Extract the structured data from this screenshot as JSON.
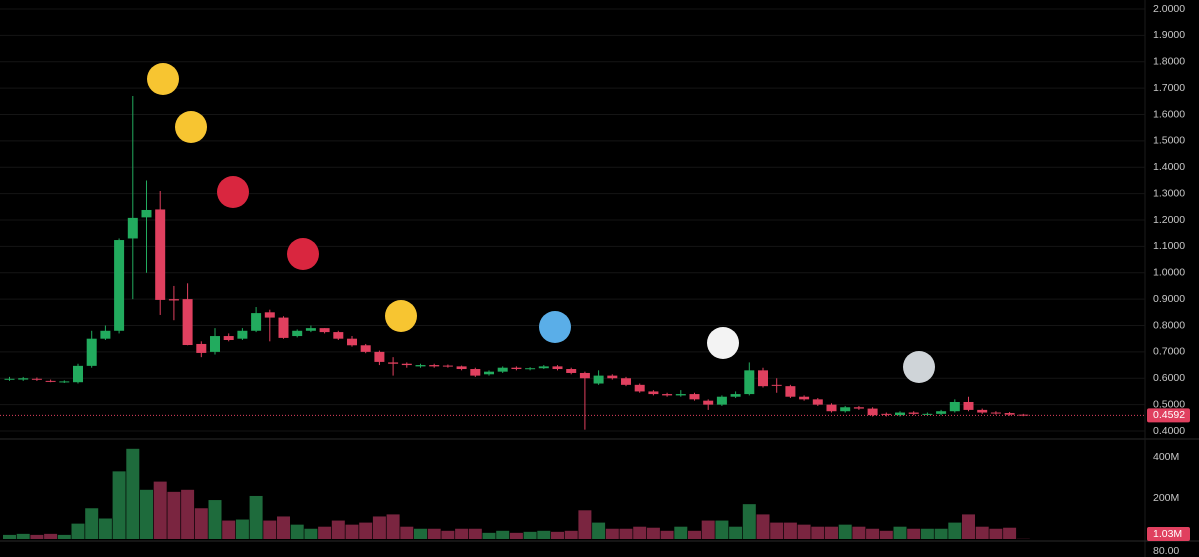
{
  "chart_data": {
    "type": "candlestick",
    "colors": {
      "up": "#22ab5e",
      "down": "#e0405f",
      "volume_up": "#1e6b3c",
      "volume_down": "#7a2540"
    },
    "open": [
      0.595,
      0.595,
      0.598,
      0.59,
      0.585,
      0.585,
      0.647,
      0.75,
      0.78,
      1.13,
      1.21,
      1.24,
      0.9,
      0.9,
      0.73,
      0.7,
      0.76,
      0.75,
      0.78,
      0.85,
      0.83,
      0.76,
      0.78,
      0.79,
      0.775,
      0.75,
      0.725,
      0.7,
      0.66,
      0.655,
      0.645,
      0.65,
      0.648,
      0.645,
      0.635,
      0.615,
      0.625,
      0.64,
      0.635,
      0.638,
      0.645,
      0.635,
      0.62,
      0.58,
      0.61,
      0.6,
      0.575,
      0.55,
      0.54,
      0.535,
      0.54,
      0.515,
      0.5,
      0.53,
      0.54,
      0.63,
      0.575,
      0.57,
      0.53,
      0.52,
      0.5,
      0.475,
      0.49,
      0.485,
      0.465,
      0.46,
      0.47,
      0.463,
      0.465,
      0.475,
      0.51,
      0.48,
      0.47,
      0.468,
      0.462
    ],
    "high": [
      0.605,
      0.605,
      0.603,
      0.595,
      0.592,
      0.655,
      0.78,
      0.8,
      1.13,
      1.67,
      1.35,
      1.31,
      0.95,
      0.96,
      0.74,
      0.79,
      0.77,
      0.79,
      0.87,
      0.86,
      0.835,
      0.785,
      0.8,
      0.79,
      0.78,
      0.76,
      0.73,
      0.705,
      0.68,
      0.66,
      0.655,
      0.655,
      0.652,
      0.648,
      0.64,
      0.63,
      0.645,
      0.645,
      0.642,
      0.65,
      0.65,
      0.64,
      0.625,
      0.63,
      0.615,
      0.605,
      0.58,
      0.555,
      0.545,
      0.555,
      0.545,
      0.52,
      0.535,
      0.55,
      0.66,
      0.64,
      0.6,
      0.575,
      0.535,
      0.525,
      0.505,
      0.495,
      0.495,
      0.49,
      0.47,
      0.475,
      0.475,
      0.47,
      0.48,
      0.52,
      0.53,
      0.485,
      0.475,
      0.472,
      0.465
    ],
    "low": [
      0.59,
      0.59,
      0.59,
      0.585,
      0.582,
      0.58,
      0.64,
      0.745,
      0.77,
      0.9,
      1.0,
      0.84,
      0.82,
      0.725,
      0.68,
      0.69,
      0.74,
      0.745,
      0.775,
      0.74,
      0.75,
      0.755,
      0.775,
      0.77,
      0.745,
      0.72,
      0.695,
      0.65,
      0.61,
      0.64,
      0.64,
      0.64,
      0.64,
      0.63,
      0.605,
      0.61,
      0.62,
      0.63,
      0.63,
      0.635,
      0.63,
      0.615,
      0.405,
      0.575,
      0.595,
      0.57,
      0.545,
      0.535,
      0.53,
      0.53,
      0.515,
      0.48,
      0.495,
      0.525,
      0.535,
      0.565,
      0.545,
      0.525,
      0.515,
      0.495,
      0.47,
      0.47,
      0.48,
      0.455,
      0.455,
      0.455,
      0.46,
      0.458,
      0.46,
      0.47,
      0.475,
      0.465,
      0.462,
      0.458,
      0.456
    ],
    "close": [
      0.598,
      0.6,
      0.595,
      0.588,
      0.588,
      0.647,
      0.75,
      0.78,
      1.124,
      1.208,
      1.238,
      0.897,
      0.895,
      0.726,
      0.696,
      0.76,
      0.745,
      0.78,
      0.847,
      0.83,
      0.753,
      0.78,
      0.79,
      0.775,
      0.75,
      0.725,
      0.7,
      0.662,
      0.655,
      0.65,
      0.65,
      0.645,
      0.645,
      0.635,
      0.61,
      0.625,
      0.64,
      0.635,
      0.638,
      0.645,
      0.635,
      0.62,
      0.6,
      0.61,
      0.6,
      0.575,
      0.55,
      0.54,
      0.535,
      0.54,
      0.52,
      0.5,
      0.53,
      0.54,
      0.63,
      0.57,
      0.572,
      0.53,
      0.52,
      0.5,
      0.475,
      0.49,
      0.485,
      0.46,
      0.462,
      0.47,
      0.465,
      0.465,
      0.475,
      0.51,
      0.48,
      0.47,
      0.468,
      0.462,
      0.4592
    ],
    "ylim": [
      0.4,
      2.0
    ],
    "yticks": [
      {
        "value": 2.0,
        "label": "2.0000"
      },
      {
        "value": 1.9,
        "label": "1.9000"
      },
      {
        "value": 1.8,
        "label": "1.8000"
      },
      {
        "value": 1.7,
        "label": "1.7000"
      },
      {
        "value": 1.6,
        "label": "1.6000"
      },
      {
        "value": 1.5,
        "label": "1.5000"
      },
      {
        "value": 1.4,
        "label": "1.4000"
      },
      {
        "value": 1.3,
        "label": "1.3000"
      },
      {
        "value": 1.2,
        "label": "1.2000"
      },
      {
        "value": 1.1,
        "label": "1.1000"
      },
      {
        "value": 1.0,
        "label": "1.0000"
      },
      {
        "value": 0.9,
        "label": "0.9000"
      },
      {
        "value": 0.8,
        "label": "0.8000"
      },
      {
        "value": 0.7,
        "label": "0.7000"
      },
      {
        "value": 0.6,
        "label": "0.6000"
      },
      {
        "value": 0.5,
        "label": "0.5000"
      },
      {
        "value": 0.4,
        "label": "0.4000"
      }
    ],
    "grid": true,
    "last_price": 0.4592,
    "volume": {
      "values": [
        20,
        25,
        20,
        25,
        20,
        75,
        150,
        100,
        330,
        440,
        240,
        280,
        230,
        240,
        150,
        190,
        90,
        95,
        210,
        90,
        110,
        70,
        50,
        60,
        90,
        70,
        80,
        110,
        120,
        60,
        50,
        50,
        40,
        50,
        50,
        30,
        40,
        30,
        35,
        40,
        35,
        40,
        140,
        80,
        50,
        50,
        60,
        55,
        40,
        60,
        40,
        90,
        90,
        60,
        170,
        120,
        80,
        80,
        70,
        60,
        60,
        70,
        60,
        50,
        40,
        60,
        50,
        50,
        50,
        80,
        120,
        60,
        50,
        55,
        1.03
      ],
      "ylim": [
        0,
        483
      ],
      "yticks": [
        {
          "value": 400,
          "label": "400M"
        },
        {
          "value": 200,
          "label": "200M"
        }
      ],
      "last_label": {
        "value": 1.03,
        "label": "1.03M"
      }
    },
    "indicator": {
      "ylim": [
        0,
        100
      ],
      "yticks": [
        {
          "value": 80,
          "label": "80.00"
        }
      ]
    }
  }
}
